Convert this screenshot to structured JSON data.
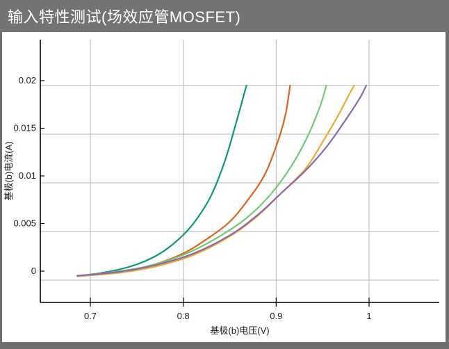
{
  "window": {
    "title": "输入特性测试(场效应管MOSFET)",
    "titlebar_color": "#737373",
    "border_color": "#6e6e6e"
  },
  "chart_data": {
    "type": "line",
    "title": "输入特性测试(场效应管MOSFET)",
    "xlabel": "基极(b)电压(V)",
    "ylabel": "基极(b)电流(A)",
    "xlim": [
      0.645,
      1.075
    ],
    "ylim": [
      -0.0023,
      0.0247
    ],
    "grid": true,
    "legend_position": "none",
    "axis_color": "#000000",
    "grid_color": "#b3b3b3",
    "x_ticks": {
      "values": [
        0.7,
        0.8,
        0.9,
        1.0
      ],
      "labels": [
        "0.7",
        "0.8",
        "0.9",
        "1"
      ]
    },
    "y_ticks": {
      "values": [
        0,
        0.005,
        0.01,
        0.015,
        0.02
      ],
      "labels": [
        "0",
        "0.005",
        "0.01",
        "0.015",
        "0.02"
      ]
    },
    "series": [
      {
        "name": "curve-1-teal",
        "color": "#0d9579",
        "points": [
          [
            0.686,
            0.00045
          ],
          [
            0.7,
            0.00058
          ],
          [
            0.72,
            0.00088
          ],
          [
            0.74,
            0.00132
          ],
          [
            0.76,
            0.002
          ],
          [
            0.78,
            0.00305
          ],
          [
            0.8,
            0.00465
          ],
          [
            0.815,
            0.00635
          ],
          [
            0.83,
            0.0087
          ],
          [
            0.845,
            0.0123
          ],
          [
            0.857,
            0.0162
          ],
          [
            0.868,
            0.02
          ]
        ]
      },
      {
        "name": "curve-2-orange",
        "color": "#d9641e",
        "points": [
          [
            0.686,
            0.00042
          ],
          [
            0.71,
            0.0006
          ],
          [
            0.74,
            0.00095
          ],
          [
            0.77,
            0.00165
          ],
          [
            0.8,
            0.00275
          ],
          [
            0.825,
            0.0042
          ],
          [
            0.85,
            0.006
          ],
          [
            0.87,
            0.0083
          ],
          [
            0.888,
            0.0109
          ],
          [
            0.902,
            0.0143
          ],
          [
            0.91,
            0.017
          ],
          [
            0.915,
            0.02
          ]
        ]
      },
      {
        "name": "curve-3-green",
        "color": "#74ca74",
        "points": [
          [
            0.686,
            0.00044
          ],
          [
            0.72,
            0.00078
          ],
          [
            0.76,
            0.0014
          ],
          [
            0.8,
            0.0026
          ],
          [
            0.83,
            0.004
          ],
          [
            0.86,
            0.0058
          ],
          [
            0.88,
            0.0074
          ],
          [
            0.9,
            0.0095
          ],
          [
            0.92,
            0.0123
          ],
          [
            0.935,
            0.015
          ],
          [
            0.947,
            0.0178
          ],
          [
            0.954,
            0.02
          ]
        ]
      },
      {
        "name": "curve-4-amber",
        "color": "#edaa33",
        "points": [
          [
            0.686,
            0.0004
          ],
          [
            0.73,
            0.00075
          ],
          [
            0.77,
            0.0014
          ],
          [
            0.81,
            0.00255
          ],
          [
            0.85,
            0.0045
          ],
          [
            0.88,
            0.0066
          ],
          [
            0.905,
            0.0089
          ],
          [
            0.932,
            0.0115
          ],
          [
            0.95,
            0.0142
          ],
          [
            0.966,
            0.0168
          ],
          [
            0.977,
            0.0188
          ],
          [
            0.984,
            0.02
          ]
        ]
      },
      {
        "name": "curve-5-purple",
        "color": "#8a69ae",
        "points": [
          [
            0.686,
            0.00046
          ],
          [
            0.73,
            0.00085
          ],
          [
            0.77,
            0.00155
          ],
          [
            0.81,
            0.0027
          ],
          [
            0.85,
            0.0046
          ],
          [
            0.88,
            0.0067
          ],
          [
            0.905,
            0.0089
          ],
          [
            0.932,
            0.0113
          ],
          [
            0.955,
            0.0138
          ],
          [
            0.975,
            0.0165
          ],
          [
            0.99,
            0.0187
          ],
          [
            0.997,
            0.02
          ]
        ]
      }
    ]
  }
}
